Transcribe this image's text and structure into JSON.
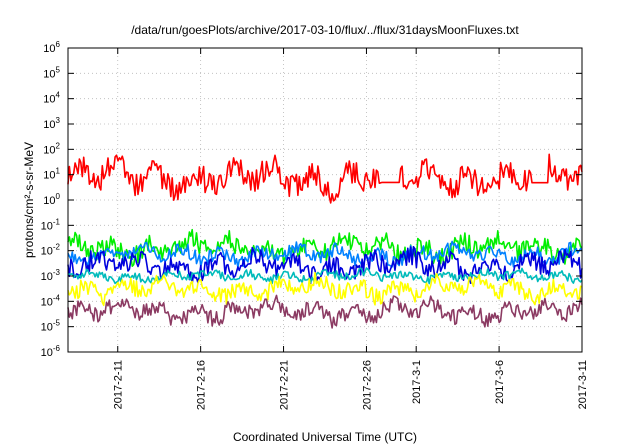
{
  "chart_data": {
    "type": "line",
    "title": "/data/run/goesPlots/archive/2017-03-10/flux/../flux/31daysMoonFluxes.txt",
    "xlabel": "Coordinated Universal Time (UTC)",
    "ylabel": "protons/cm²-s-sr-MeV",
    "y_scale": "log",
    "ylim": [
      1e-06,
      1000000.0
    ],
    "xlim": [
      "2017-02-08",
      "2017-03-11"
    ],
    "x_ticks": [
      "2017-2-11",
      "2017-2-16",
      "2017-2-21",
      "2017-2-26",
      "2017-3-1",
      "2017-3-6",
      "2017-3-11"
    ],
    "y_ticks": [
      -6,
      -5,
      -4,
      -3,
      -2,
      -1,
      0,
      1,
      2,
      3,
      4,
      5,
      6
    ],
    "grid": true,
    "series": [
      {
        "color": "#ff0000",
        "base_exp": 0.9,
        "noise": 0.45,
        "offset": 0,
        "data_gaps": [
          [
            "2017-02-27",
            "2017-02-28"
          ],
          [
            "2017-03-08",
            "2017-03-09"
          ]
        ]
      },
      {
        "color": "#00ee00",
        "base_exp": -1.9,
        "noise": 0.35,
        "offset": 1
      },
      {
        "color": "#0080ff",
        "base_exp": -2.15,
        "noise": 0.25,
        "offset": 2
      },
      {
        "color": "#0000dd",
        "base_exp": -2.6,
        "noise": 0.35,
        "offset": 3
      },
      {
        "color": "#00bbbb",
        "base_exp": -3.0,
        "noise": 0.15,
        "offset": 4
      },
      {
        "color": "#ffff00",
        "base_exp": -3.5,
        "noise": 0.3,
        "offset": 5
      },
      {
        "color": "#8b3a62",
        "base_exp": -4.4,
        "noise": 0.3,
        "offset": 6
      }
    ]
  }
}
